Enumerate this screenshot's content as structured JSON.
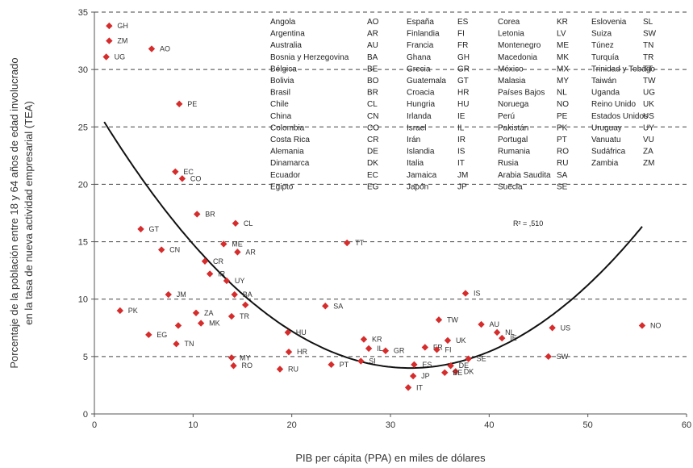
{
  "chart_data": {
    "type": "scatter",
    "xlabel": "PIB per cápita (PPA) en miles de dólares",
    "ylabel_lines": [
      "Porcentaje de la población entre 18 y 64 años de edad involucrado",
      "en la tasa de nueva actividad empresarial (TEA)"
    ],
    "xlim": [
      0,
      60
    ],
    "ylim": [
      0,
      35
    ],
    "xticks": [
      0,
      10,
      20,
      30,
      40,
      50,
      60
    ],
    "yticks": [
      0,
      5,
      10,
      15,
      20,
      25,
      30,
      35
    ],
    "grid": "horizontal dashed",
    "marker_color": "#d62c2c",
    "r2_label": "R² = ,510",
    "trend_curve": {
      "type": "quadratic",
      "x_range": [
        1,
        55.5
      ],
      "points": [
        [
          1,
          27.2
        ],
        [
          55.5,
          15.3
        ]
      ],
      "vertex": [
        32,
        4.0
      ]
    },
    "points": [
      {
        "label": "GH",
        "x": 1.5,
        "y": 33.8
      },
      {
        "label": "ZM",
        "x": 1.5,
        "y": 32.5
      },
      {
        "label": "UG",
        "x": 1.2,
        "y": 31.1
      },
      {
        "label": "AO",
        "x": 5.8,
        "y": 31.8
      },
      {
        "label": "PE",
        "x": 8.6,
        "y": 27.0
      },
      {
        "label": "EC",
        "x": 8.2,
        "y": 21.1
      },
      {
        "label": "CO",
        "x": 8.9,
        "y": 20.5
      },
      {
        "label": "BR",
        "x": 10.4,
        "y": 17.4
      },
      {
        "label": "CL",
        "x": 14.3,
        "y": 16.6
      },
      {
        "label": "GT",
        "x": 4.7,
        "y": 16.1
      },
      {
        "label": "ME",
        "x": 13.1,
        "y": 14.8
      },
      {
        "label": "AR",
        "x": 14.5,
        "y": 14.1
      },
      {
        "label": "TT",
        "x": 25.6,
        "y": 14.9
      },
      {
        "label": "CN",
        "x": 6.8,
        "y": 14.3
      },
      {
        "label": "CR",
        "x": 11.2,
        "y": 13.3
      },
      {
        "label": "IR",
        "x": 11.7,
        "y": 12.2
      },
      {
        "label": "UY",
        "x": 13.4,
        "y": 11.6
      },
      {
        "label": "JM",
        "x": 7.5,
        "y": 10.4
      },
      {
        "label": "BA",
        "x": 14.2,
        "y": 10.4
      },
      {
        "label": "",
        "x": 15.3,
        "y": 9.5
      },
      {
        "label": "SA",
        "x": 23.4,
        "y": 9.4
      },
      {
        "label": "IS",
        "x": 37.6,
        "y": 10.5
      },
      {
        "label": "PK",
        "x": 2.6,
        "y": 9.0
      },
      {
        "label": "ZA",
        "x": 10.3,
        "y": 8.8
      },
      {
        "label": "TR",
        "x": 13.9,
        "y": 8.5
      },
      {
        "label": "MK",
        "x": 10.8,
        "y": 7.9
      },
      {
        "label": "",
        "x": 8.5,
        "y": 7.7
      },
      {
        "label": "TW",
        "x": 34.9,
        "y": 8.2
      },
      {
        "label": "AU",
        "x": 39.2,
        "y": 7.8
      },
      {
        "label": "NO",
        "x": 55.5,
        "y": 7.7
      },
      {
        "label": "US",
        "x": 46.4,
        "y": 7.5
      },
      {
        "label": "NL",
        "x": 40.8,
        "y": 7.1
      },
      {
        "label": "IE",
        "x": 41.3,
        "y": 6.6
      },
      {
        "label": "UK",
        "x": 35.8,
        "y": 6.4
      },
      {
        "label": "HU",
        "x": 19.6,
        "y": 7.1
      },
      {
        "label": "EG",
        "x": 5.5,
        "y": 6.9
      },
      {
        "label": "KR",
        "x": 27.3,
        "y": 6.5
      },
      {
        "label": "IL",
        "x": 27.8,
        "y": 5.7
      },
      {
        "label": "GR",
        "x": 29.5,
        "y": 5.5
      },
      {
        "label": "FR",
        "x": 33.5,
        "y": 5.8
      },
      {
        "label": "FI",
        "x": 34.7,
        "y": 5.6
      },
      {
        "label": "TN",
        "x": 8.3,
        "y": 6.1
      },
      {
        "label": "HR",
        "x": 19.7,
        "y": 5.4
      },
      {
        "label": "MY",
        "x": 13.9,
        "y": 4.9
      },
      {
        "label": "SW",
        "x": 46.0,
        "y": 5.0
      },
      {
        "label": "SE",
        "x": 37.9,
        "y": 4.8
      },
      {
        "label": "SI",
        "x": 27.0,
        "y": 4.6
      },
      {
        "label": "ES",
        "x": 32.4,
        "y": 4.3
      },
      {
        "label": "DE",
        "x": 36.1,
        "y": 4.2
      },
      {
        "label": "RO",
        "x": 14.1,
        "y": 4.2
      },
      {
        "label": "PT",
        "x": 24.0,
        "y": 4.3
      },
      {
        "label": "RU",
        "x": 18.8,
        "y": 3.9
      },
      {
        "label": "DK",
        "x": 36.6,
        "y": 3.7
      },
      {
        "label": "BE",
        "x": 35.5,
        "y": 3.6
      },
      {
        "label": "JP",
        "x": 32.3,
        "y": 3.3
      },
      {
        "label": "IT",
        "x": 31.8,
        "y": 2.3
      }
    ]
  },
  "legend": {
    "columns": [
      {
        "names": [
          "Angola",
          "Argentina",
          "Australia",
          "Bosnia y Herzegovina",
          "Bélgica",
          "Bolivia",
          "Brasil",
          "Chile",
          "China",
          "Colombia",
          "Costa Rica",
          "Alemania",
          "Dinamarca",
          "Ecuador",
          "Egipto"
        ],
        "codes": [
          "AO",
          "AR",
          "AU",
          "BA",
          "BE",
          "BO",
          "BR",
          "CL",
          "CN",
          "CO",
          "CR",
          "DE",
          "DK",
          "EC",
          "EG"
        ]
      },
      {
        "names": [
          "España",
          "Finlandia",
          "Francia",
          "Ghana",
          "Grecia",
          "Guatemala",
          "Croacia",
          "Hungria",
          "Irlanda",
          "Israel",
          "Irán",
          "Islandia",
          "Italia",
          "Jamaica",
          "Japón"
        ],
        "codes": [
          "ES",
          "FI",
          "FR",
          "GH",
          "GR",
          "GT",
          "HR",
          "HU",
          "IE",
          "IL",
          "IR",
          "IS",
          "IT",
          "JM",
          "JP"
        ]
      },
      {
        "names": [
          "Corea",
          "Letonia",
          "Montenegro",
          "Macedonia",
          "México",
          "Malasia",
          "Países Bajos",
          "Noruega",
          "Perú",
          "Pakistán",
          "Portugal",
          "Rumania",
          "Rusia",
          "Arabia Saudita",
          "Suecia"
        ],
        "codes": [
          "KR",
          "LV",
          "ME",
          "MK",
          "MX",
          "MY",
          "NL",
          "NO",
          "PE",
          "PK",
          "PT",
          "RO",
          "RU",
          "SA",
          "SE"
        ]
      },
      {
        "names": [
          "Eslovenia",
          "Suiza",
          "Túnez",
          "Turquía",
          "Trinidad y Tobago",
          "Taiwán",
          "Uganda",
          "Reino Unido",
          "Estados Unidos",
          "Uruguay",
          "Vanuatu",
          "Sudáfrica",
          "Zambia"
        ],
        "codes": [
          "SL",
          "SW",
          "TN",
          "TR",
          "TT",
          "TW",
          "UG",
          "UK",
          "US",
          "UY",
          "VU",
          "ZA",
          "ZM"
        ]
      }
    ]
  }
}
